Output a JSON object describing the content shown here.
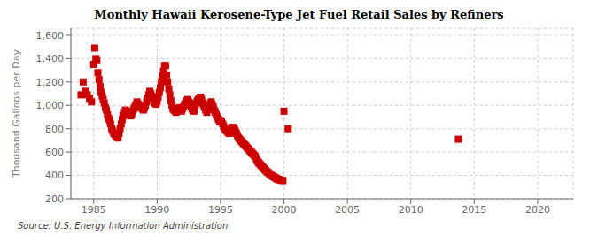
{
  "chart_data": {
    "type": "scatter",
    "title": "Monthly Hawaii Kerosene-Type Jet Fuel Retail Sales by Refiners",
    "ylabel": "Thousand Gallons per Day",
    "annotations": [
      "Source: U.S. Energy Information Administration"
    ],
    "color": "#cc0000",
    "marker": "square",
    "grid": true,
    "xlim": [
      1983.2,
      2022.8
    ],
    "ylim": [
      200,
      1660
    ],
    "xticks": [
      1985,
      1990,
      1995,
      2000,
      2005,
      2010,
      2015,
      2020
    ],
    "yticks": [
      200,
      400,
      600,
      800,
      {
        "value": 1000,
        "label": "1,000"
      },
      {
        "value": 1200,
        "label": "1,200"
      },
      {
        "value": 1400,
        "label": "1,400"
      },
      {
        "value": 1600,
        "label": "1,600"
      }
    ],
    "x": [
      1984.0,
      1984.17,
      1984.33,
      1984.5,
      1984.67,
      1984.83,
      1985.0,
      1985.08,
      1985.17,
      1985.25,
      1985.33,
      1985.42,
      1985.5,
      1985.58,
      1985.67,
      1985.75,
      1985.83,
      1985.92,
      1986.0,
      1986.08,
      1986.17,
      1986.25,
      1986.33,
      1986.42,
      1986.5,
      1986.58,
      1986.67,
      1986.75,
      1986.83,
      1986.92,
      1987.0,
      1987.08,
      1987.17,
      1987.25,
      1987.33,
      1987.42,
      1987.5,
      1987.58,
      1987.67,
      1987.75,
      1987.83,
      1987.92,
      1988.0,
      1988.08,
      1988.17,
      1988.25,
      1988.33,
      1988.42,
      1988.5,
      1988.58,
      1988.67,
      1988.75,
      1988.83,
      1988.92,
      1989.0,
      1989.08,
      1989.17,
      1989.25,
      1989.33,
      1989.42,
      1989.5,
      1989.58,
      1989.67,
      1989.75,
      1989.83,
      1989.92,
      1990.0,
      1990.08,
      1990.17,
      1990.25,
      1990.33,
      1990.42,
      1990.5,
      1990.58,
      1990.67,
      1990.75,
      1990.83,
      1990.92,
      1991.0,
      1991.08,
      1991.17,
      1991.25,
      1991.33,
      1991.42,
      1991.5,
      1991.58,
      1991.67,
      1991.75,
      1991.83,
      1991.92,
      1992.0,
      1992.08,
      1992.17,
      1992.25,
      1992.33,
      1992.42,
      1992.5,
      1992.58,
      1992.67,
      1992.75,
      1992.83,
      1992.92,
      1993.0,
      1993.08,
      1993.17,
      1993.25,
      1993.33,
      1993.42,
      1993.5,
      1993.58,
      1993.67,
      1993.75,
      1993.83,
      1993.92,
      1994.0,
      1994.08,
      1994.17,
      1994.25,
      1994.33,
      1994.42,
      1994.5,
      1994.58,
      1994.67,
      1994.75,
      1994.83,
      1994.92,
      1995.0,
      1995.08,
      1995.17,
      1995.25,
      1995.33,
      1995.42,
      1995.5,
      1995.58,
      1995.67,
      1995.75,
      1995.83,
      1995.92,
      1996.0,
      1996.08,
      1996.17,
      1996.25,
      1996.33,
      1996.42,
      1996.5,
      1996.58,
      1996.67,
      1996.75,
      1996.83,
      1996.92,
      1997.0,
      1997.08,
      1997.17,
      1997.25,
      1997.33,
      1997.42,
      1997.5,
      1997.58,
      1997.67,
      1997.75,
      1997.83,
      1997.92,
      1998.0,
      1998.08,
      1998.17,
      1998.25,
      1998.33,
      1998.42,
      1998.5,
      1998.58,
      1998.67,
      1998.75,
      1998.83,
      1998.92,
      1999.0,
      1999.08,
      1999.17,
      1999.25,
      1999.33,
      1999.42,
      1999.5,
      1999.58,
      1999.67,
      1999.75,
      1999.83,
      1999.92,
      2000.0,
      2000.33,
      2013.75
    ],
    "values": [
      1090,
      1200,
      1120,
      1090,
      1060,
      1030,
      1350,
      1490,
      1400,
      1390,
      1280,
      1220,
      1160,
      1110,
      1080,
      1050,
      1020,
      980,
      960,
      920,
      890,
      870,
      840,
      800,
      780,
      760,
      750,
      740,
      730,
      720,
      760,
      800,
      840,
      880,
      910,
      940,
      960,
      950,
      940,
      930,
      920,
      910,
      930,
      950,
      970,
      990,
      1010,
      1030,
      1010,
      1000,
      990,
      980,
      970,
      960,
      980,
      1000,
      1030,
      1060,
      1090,
      1120,
      1100,
      1080,
      1060,
      1040,
      1020,
      1010,
      1030,
      1070,
      1110,
      1150,
      1200,
      1250,
      1290,
      1340,
      1340,
      1260,
      1200,
      1140,
      1090,
      1040,
      1000,
      970,
      960,
      950,
      940,
      960,
      970,
      980,
      960,
      950,
      970,
      990,
      1010,
      1020,
      1040,
      1050,
      1030,
      1010,
      990,
      970,
      960,
      950,
      1000,
      1020,
      1040,
      1050,
      1060,
      1070,
      1050,
      1020,
      1000,
      980,
      960,
      940,
      970,
      990,
      1010,
      1030,
      1010,
      990,
      960,
      940,
      920,
      900,
      880,
      860,
      870,
      860,
      840,
      820,
      800,
      790,
      780,
      770,
      760,
      770,
      790,
      810,
      810,
      800,
      780,
      760,
      740,
      720,
      710,
      700,
      690,
      680,
      670,
      660,
      650,
      640,
      630,
      620,
      610,
      600,
      590,
      580,
      570,
      560,
      540,
      520,
      510,
      500,
      490,
      480,
      470,
      460,
      450,
      440,
      430,
      425,
      415,
      408,
      400,
      395,
      390,
      385,
      378,
      372,
      368,
      365,
      362,
      360,
      358,
      355,
      950,
      800,
      710
    ]
  }
}
